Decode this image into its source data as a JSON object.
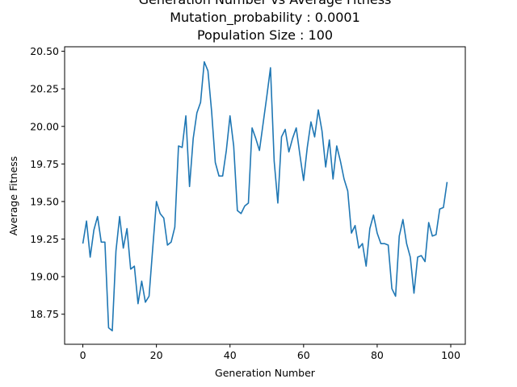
{
  "chart_data": {
    "type": "line",
    "title_lines": [
      "Generation Number vs Average Fitness",
      "Mutation_probability : 0.0001",
      "Population Size : 100"
    ],
    "xlabel": "Generation Number",
    "ylabel": "Average Fitness",
    "xlim": [
      -4.95,
      103.95
    ],
    "ylim": [
      18.55,
      20.53
    ],
    "xticks": [
      0,
      20,
      40,
      60,
      80,
      100
    ],
    "xtick_labels": [
      "0",
      "20",
      "40",
      "60",
      "80",
      "100"
    ],
    "yticks": [
      18.75,
      19.0,
      19.25,
      19.5,
      19.75,
      20.0,
      20.25,
      20.5
    ],
    "ytick_labels": [
      "18.75",
      "19.00",
      "19.25",
      "19.50",
      "19.75",
      "20.00",
      "20.25",
      "20.50"
    ],
    "grid": false,
    "series": [
      {
        "name": "Average Fitness",
        "color": "#1f77b4",
        "x": [
          0,
          1,
          2,
          3,
          4,
          5,
          6,
          7,
          8,
          9,
          10,
          11,
          12,
          13,
          14,
          15,
          16,
          17,
          18,
          19,
          20,
          21,
          22,
          23,
          24,
          25,
          26,
          27,
          28,
          29,
          30,
          31,
          32,
          33,
          34,
          35,
          36,
          37,
          38,
          39,
          40,
          41,
          42,
          43,
          44,
          45,
          46,
          47,
          48,
          49,
          50,
          51,
          52,
          53,
          54,
          55,
          56,
          57,
          58,
          59,
          60,
          61,
          62,
          63,
          64,
          65,
          66,
          67,
          68,
          69,
          70,
          71,
          72,
          73,
          74,
          75,
          76,
          77,
          78,
          79,
          80,
          81,
          82,
          83,
          84,
          85,
          86,
          87,
          88,
          89,
          90,
          91,
          92,
          93,
          94,
          95,
          96,
          97,
          98,
          99
        ],
        "values": [
          19.22,
          19.37,
          19.13,
          19.31,
          19.4,
          19.23,
          19.23,
          18.66,
          18.64,
          19.17,
          19.4,
          19.19,
          19.32,
          19.05,
          19.07,
          18.82,
          18.97,
          18.83,
          18.87,
          19.19,
          19.5,
          19.42,
          19.39,
          19.21,
          19.23,
          19.33,
          19.87,
          19.86,
          20.07,
          19.6,
          19.92,
          20.09,
          20.16,
          20.43,
          20.37,
          20.1,
          19.76,
          19.67,
          19.67,
          19.84,
          20.07,
          19.87,
          19.44,
          19.42,
          19.47,
          19.49,
          19.99,
          19.92,
          19.84,
          20.02,
          20.2,
          20.39,
          19.77,
          19.49,
          19.93,
          19.98,
          19.83,
          19.92,
          19.99,
          19.81,
          19.64,
          19.86,
          20.03,
          19.93,
          20.11,
          19.97,
          19.73,
          19.91,
          19.65,
          19.87,
          19.77,
          19.65,
          19.57,
          19.29,
          19.34,
          19.19,
          19.22,
          19.07,
          19.32,
          19.41,
          19.29,
          19.22,
          19.22,
          19.21,
          18.92,
          18.87,
          19.27,
          19.38,
          19.22,
          19.13,
          18.89,
          19.13,
          19.14,
          19.1,
          19.36,
          19.27,
          19.28,
          19.45,
          19.46,
          19.63
        ]
      }
    ]
  }
}
